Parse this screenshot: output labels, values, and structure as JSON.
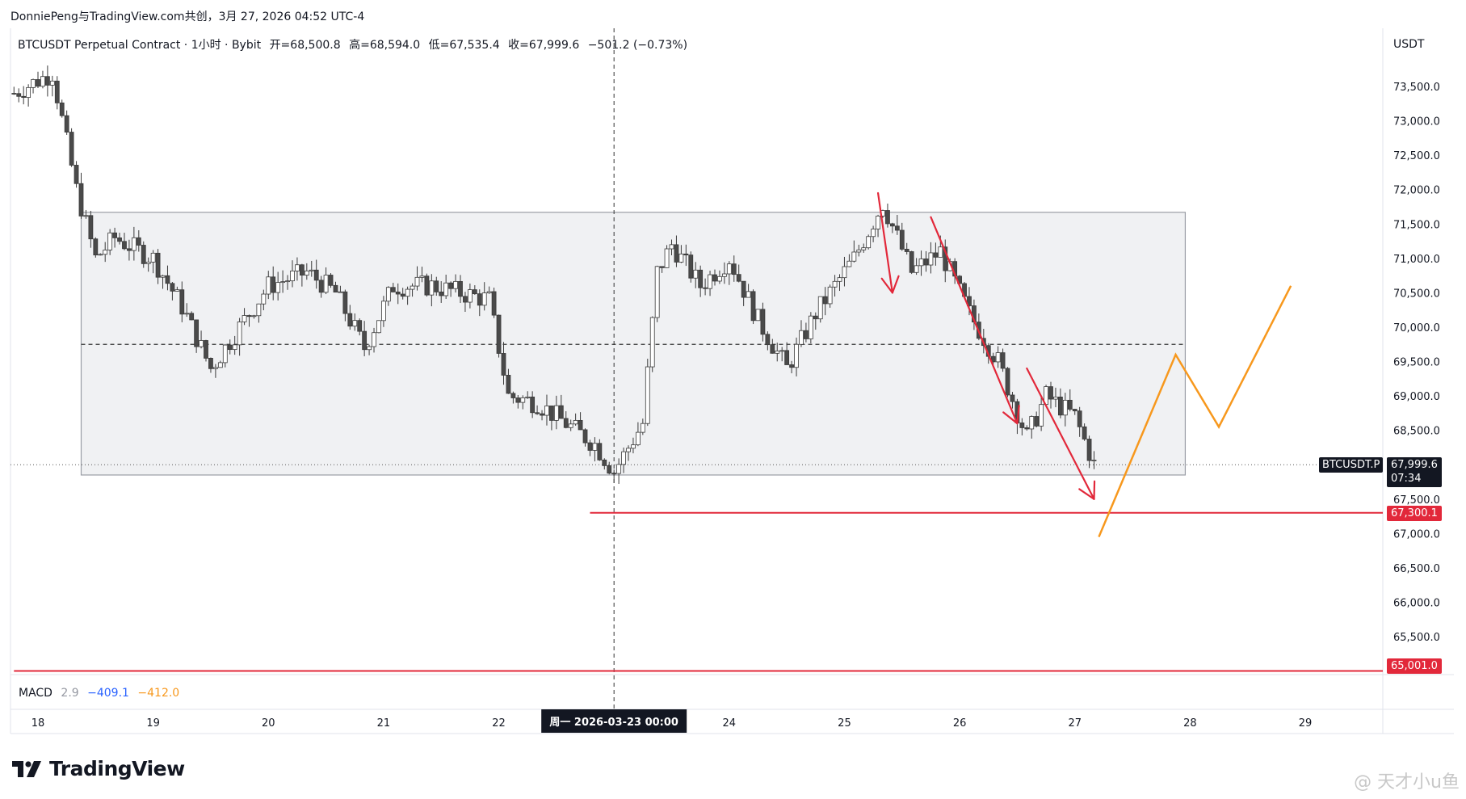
{
  "attribution": "DonniePeng与TradingView.com共创，3月 27, 2026 04:52 UTC-4",
  "header": {
    "symbol_desc": "BTCUSDT Perpetual Contract · 1小时 · Bybit",
    "open": "开=68,500.8",
    "high": "高=68,594.0",
    "low": "低=67,535.4",
    "close": "收=67,999.6",
    "change": "−501.2 (−0.73%)"
  },
  "price_axis": {
    "currency": "USDT",
    "ticks": [
      "73,500.0",
      "73,000.0",
      "72,500.0",
      "72,000.0",
      "71,500.0",
      "71,000.0",
      "70,500.0",
      "70,000.0",
      "69,500.0",
      "69,000.0",
      "68,500.0",
      "67,500.0",
      "67,000.0",
      "66,500.0",
      "66,000.0",
      "65,500.0"
    ]
  },
  "price_labels": {
    "symbol_tag": "BTCUSDT.P",
    "last_price": "67,999.6",
    "countdown": "07:34",
    "support_1": "67,300.1",
    "support_2": "65,001.0"
  },
  "time_axis": {
    "labels": [
      "18",
      "19",
      "20",
      "21",
      "22",
      "24",
      "25",
      "26",
      "27",
      "28",
      "29"
    ],
    "crosshair_label": "周一 2026-03-23   00:00"
  },
  "macd": {
    "label": "MACD",
    "v1": "2.9",
    "v2": "−409.1",
    "v3": "−412.0"
  },
  "colors": {
    "candle_up": "#ffffff",
    "candle_down": "#4a4a4a",
    "candle_border": "#3a3a3a",
    "range_box_fill": "#f0f1f3",
    "support_line": "#e2283a",
    "down_arrow": "#e2283a",
    "projection": "#f7981d",
    "last_price_bg": "#131722"
  },
  "logo": {
    "text": "TradingView"
  },
  "watermark": "@ 天才小u鱼",
  "chart_data": {
    "type": "candlestick",
    "symbol": "BTCUSDT.P",
    "interval": "1小时",
    "y_range": [
      64600,
      74100
    ],
    "x_range": [
      "2026-03-17 19:00",
      "2026-03-29 12:00"
    ],
    "close_path": [
      {
        "t": "2026-03-17 19:00",
        "p": 73400
      },
      {
        "t": "2026-03-18 03:00",
        "p": 73700
      },
      {
        "t": "2026-03-18 08:00",
        "p": 72000
      },
      {
        "t": "2026-03-18 12:00",
        "p": 71000
      },
      {
        "t": "2026-03-18 16:00",
        "p": 71300
      },
      {
        "t": "2026-03-19 00:00",
        "p": 71000
      },
      {
        "t": "2026-03-19 06:00",
        "p": 70300
      },
      {
        "t": "2026-03-19 12:00",
        "p": 69400
      },
      {
        "t": "2026-03-19 18:00",
        "p": 70000
      },
      {
        "t": "2026-03-20 00:00",
        "p": 70600
      },
      {
        "t": "2026-03-20 08:00",
        "p": 70800
      },
      {
        "t": "2026-03-20 14:00",
        "p": 70500
      },
      {
        "t": "2026-03-20 20:00",
        "p": 69700
      },
      {
        "t": "2026-03-21 02:00",
        "p": 70600
      },
      {
        "t": "2026-03-21 10:00",
        "p": 70600
      },
      {
        "t": "2026-03-21 16:00",
        "p": 70500
      },
      {
        "t": "2026-03-21 22:00",
        "p": 70400
      },
      {
        "t": "2026-03-22 02:00",
        "p": 69000
      },
      {
        "t": "2026-03-22 08:00",
        "p": 68900
      },
      {
        "t": "2026-03-22 14:00",
        "p": 68600
      },
      {
        "t": "2026-03-22 20:00",
        "p": 68300
      },
      {
        "t": "2026-03-23 00:00",
        "p": 67900
      },
      {
        "t": "2026-03-23 06:00",
        "p": 68600
      },
      {
        "t": "2026-03-23 09:00",
        "p": 70800
      },
      {
        "t": "2026-03-23 12:00",
        "p": 71200
      },
      {
        "t": "2026-03-23 18:00",
        "p": 70600
      },
      {
        "t": "2026-03-24 00:00",
        "p": 71000
      },
      {
        "t": "2026-03-24 06:00",
        "p": 70100
      },
      {
        "t": "2026-03-24 12:00",
        "p": 69400
      },
      {
        "t": "2026-03-24 18:00",
        "p": 70200
      },
      {
        "t": "2026-03-25 02:00",
        "p": 71000
      },
      {
        "t": "2026-03-25 08:00",
        "p": 71800
      },
      {
        "t": "2026-03-25 14:00",
        "p": 70800
      },
      {
        "t": "2026-03-25 20:00",
        "p": 71100
      },
      {
        "t": "2026-03-26 02:00",
        "p": 70200
      },
      {
        "t": "2026-03-26 08:00",
        "p": 69500
      },
      {
        "t": "2026-03-26 14:00",
        "p": 68400
      },
      {
        "t": "2026-03-26 18:00",
        "p": 69000
      },
      {
        "t": "2026-03-27 00:00",
        "p": 68700
      },
      {
        "t": "2026-03-27 04:00",
        "p": 68000
      }
    ],
    "last_price": 67999.6,
    "range_box": {
      "from": "2026-03-18 09:00",
      "to": "2026-03-27 23:00",
      "top": 71670,
      "bottom": 67850
    },
    "mid_line": 69750,
    "support_lines": [
      {
        "price": 67300.1,
        "from": "2026-03-22 19:00"
      },
      {
        "price": 65001.0,
        "from": "2026-03-17 19:00"
      }
    ],
    "crosshair": "2026-03-23 00:00",
    "down_arrows": [
      [
        {
          "t": "2026-03-25 07:00",
          "p": 71950
        },
        {
          "t": "2026-03-25 10:00",
          "p": 70500
        }
      ],
      [
        {
          "t": "2026-03-25 18:00",
          "p": 71600
        },
        {
          "t": "2026-03-26 12:00",
          "p": 68600
        }
      ],
      [
        {
          "t": "2026-03-26 14:00",
          "p": 69400
        },
        {
          "t": "2026-03-27 04:00",
          "p": 67500
        }
      ]
    ],
    "projection": [
      {
        "t": "2026-03-27 05:00",
        "p": 66950
      },
      {
        "t": "2026-03-27 21:00",
        "p": 69600
      },
      {
        "t": "2026-03-28 06:00",
        "p": 68550
      },
      {
        "t": "2026-03-28 21:00",
        "p": 70600
      }
    ]
  }
}
